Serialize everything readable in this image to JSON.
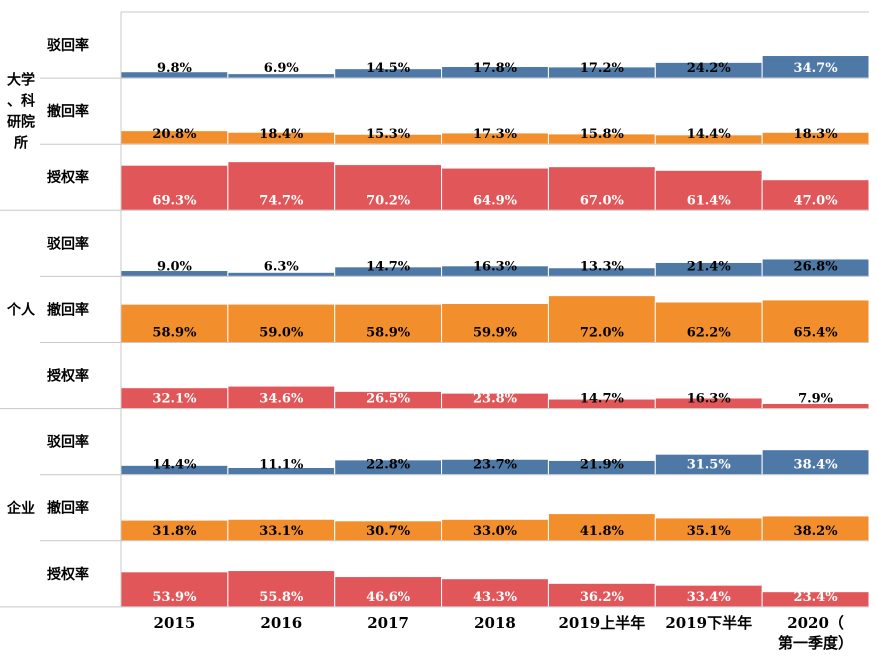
{
  "chart_data": {
    "type": "bar",
    "categories": [
      "2015",
      "2016",
      "2017",
      "2018",
      "2019上半年",
      "2019下半年",
      "2020（第一季度）"
    ],
    "category_label_lines": [
      [
        "2015"
      ],
      [
        "2016"
      ],
      [
        "2017"
      ],
      [
        "2018"
      ],
      [
        "2019上半年"
      ],
      [
        "2019下半年"
      ],
      [
        "2020（",
        "第一季度）"
      ]
    ],
    "metrics": [
      "驳回率",
      "撤回率",
      "授权率"
    ],
    "ylim": [
      0,
      100
    ],
    "groups": [
      {
        "name": "大学、科研院所",
        "name_lines": [
          "大学",
          "、科",
          "研院",
          "所"
        ],
        "series": [
          {
            "name": "驳回率",
            "values": [
              9.8,
              6.9,
              14.5,
              17.8,
              17.2,
              24.2,
              34.7
            ],
            "labels": [
              "9.8%",
              "6.9%",
              "14.5%",
              "17.8%",
              "17.2%",
              "24.2%",
              "34.7%"
            ]
          },
          {
            "name": "撤回率",
            "values": [
              20.8,
              18.4,
              15.3,
              17.3,
              15.8,
              14.4,
              18.3
            ],
            "labels": [
              "20.8%",
              "18.4%",
              "15.3%",
              "17.3%",
              "15.8%",
              "14.4%",
              "18.3%"
            ]
          },
          {
            "name": "授权率",
            "values": [
              69.3,
              74.7,
              70.2,
              64.9,
              67.0,
              61.4,
              47.0
            ],
            "labels": [
              "69.3%",
              "74.7%",
              "70.2%",
              "64.9%",
              "67.0%",
              "61.4%",
              "47.0%"
            ]
          }
        ]
      },
      {
        "name": "个人",
        "name_lines": [
          "个人"
        ],
        "series": [
          {
            "name": "驳回率",
            "values": [
              9.0,
              6.3,
              14.7,
              16.3,
              13.3,
              21.4,
              26.8
            ],
            "labels": [
              "9.0%",
              "6.3%",
              "14.7%",
              "16.3%",
              "13.3%",
              "21.4%",
              "26.8%"
            ]
          },
          {
            "name": "撤回率",
            "values": [
              58.9,
              59.0,
              58.9,
              59.9,
              72.0,
              62.2,
              65.4
            ],
            "labels": [
              "58.9%",
              "59.0%",
              "58.9%",
              "59.9%",
              "72.0%",
              "62.2%",
              "65.4%"
            ]
          },
          {
            "name": "授权率",
            "values": [
              32.1,
              34.6,
              26.5,
              23.8,
              14.7,
              16.3,
              7.9
            ],
            "labels": [
              "32.1%",
              "34.6%",
              "26.5%",
              "23.8%",
              "14.7%",
              "16.3%",
              "7.9%"
            ]
          }
        ]
      },
      {
        "name": "企业",
        "name_lines": [
          "企业"
        ],
        "series": [
          {
            "name": "驳回率",
            "values": [
              14.4,
              11.1,
              22.8,
              23.7,
              21.9,
              31.5,
              38.4
            ],
            "labels": [
              "14.4%",
              "11.1%",
              "22.8%",
              "23.7%",
              "21.9%",
              "31.5%",
              "38.4%"
            ]
          },
          {
            "name": "撤回率",
            "values": [
              31.8,
              33.1,
              30.7,
              33.0,
              41.8,
              35.1,
              38.2
            ],
            "labels": [
              "31.8%",
              "33.1%",
              "30.7%",
              "33.0%",
              "41.8%",
              "35.1%",
              "38.2%"
            ]
          },
          {
            "name": "授权率",
            "values": [
              53.9,
              55.8,
              46.6,
              43.3,
              36.2,
              33.4,
              23.4
            ],
            "labels": [
              "53.9%",
              "55.8%",
              "46.6%",
              "43.3%",
              "36.2%",
              "33.4%",
              "23.4%"
            ]
          }
        ]
      }
    ],
    "colors": {
      "驳回率": "#4e79a7",
      "撤回率": "#f28e2b",
      "授权率": "#e15759"
    }
  }
}
